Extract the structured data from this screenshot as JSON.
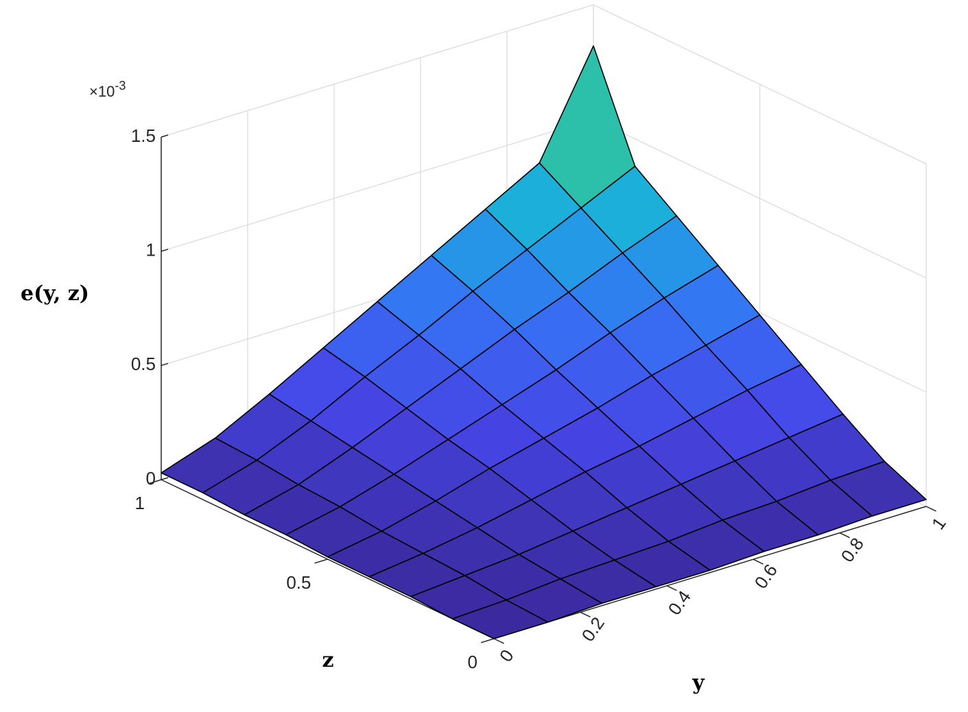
{
  "chart_data": {
    "type": "surface",
    "x_label": "y",
    "y_label": "z",
    "value_label": "e(y, z)",
    "multiplier": {
      "base": "×10",
      "exponent": "-3"
    },
    "y": [
      0,
      0.125,
      0.25,
      0.375,
      0.5,
      0.625,
      0.75,
      0.875,
      1
    ],
    "z": [
      0,
      0.125,
      0.25,
      0.375,
      0.5,
      0.625,
      0.75,
      0.875,
      1
    ],
    "values": [
      [
        0.0,
        0.0,
        0.01,
        0.01,
        0.01,
        0.02,
        0.02,
        0.03,
        0.03
      ],
      [
        0.0,
        0.01,
        0.03,
        0.04,
        0.05,
        0.07,
        0.08,
        0.1,
        0.11
      ],
      [
        0.01,
        0.03,
        0.05,
        0.08,
        0.11,
        0.14,
        0.17,
        0.2,
        0.23
      ],
      [
        0.01,
        0.04,
        0.08,
        0.13,
        0.18,
        0.22,
        0.27,
        0.32,
        0.36
      ],
      [
        0.01,
        0.05,
        0.11,
        0.18,
        0.24,
        0.3,
        0.37,
        0.43,
        0.49
      ],
      [
        0.02,
        0.07,
        0.14,
        0.22,
        0.3,
        0.38,
        0.47,
        0.55,
        0.62
      ],
      [
        0.02,
        0.08,
        0.17,
        0.27,
        0.37,
        0.47,
        0.56,
        0.66,
        0.75
      ],
      [
        0.03,
        0.1,
        0.2,
        0.32,
        0.43,
        0.55,
        0.66,
        0.77,
        0.88
      ],
      [
        0.03,
        0.11,
        0.23,
        0.36,
        0.49,
        0.62,
        0.75,
        0.88,
        1.32
      ]
    ],
    "ylim": [
      0,
      1
    ],
    "yticks": [
      0,
      0.2,
      0.4,
      0.6,
      0.8,
      1
    ],
    "zlim": [
      0,
      1
    ],
    "zticks": [
      0,
      0.5,
      1
    ],
    "vlim": [
      0,
      1.5
    ],
    "vticks": [
      0,
      0.5,
      1,
      1.5
    ],
    "grid": true,
    "colormap": [
      "#3b2a9e",
      "#4646e6",
      "#3672f5",
      "#1aaede",
      "#2fc3a2",
      "#60c878",
      "#a0c850"
    ],
    "edge_color": "#000000"
  }
}
